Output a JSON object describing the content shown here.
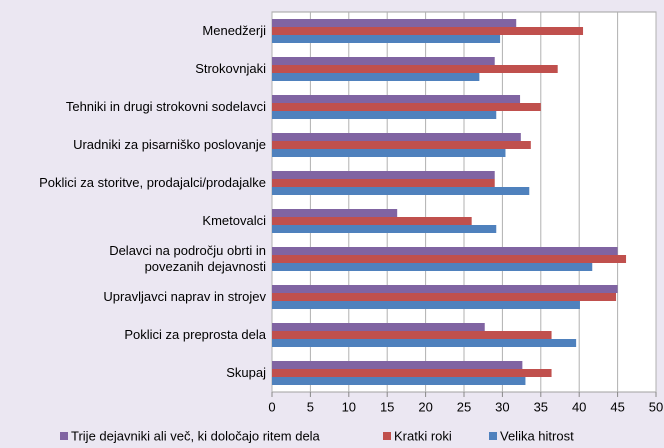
{
  "chart_data": {
    "type": "barh",
    "categories": [
      "Menedžerji",
      "Strokovnjaki",
      "Tehniki in drugi strokovni sodelavci",
      "Uradniki za pisarniško poslovanje",
      "Poklici za storitve, prodajalci/prodajalke",
      "Kmetovalci",
      "Delavci na področju obrti in\npovezanih dejavnosti",
      "Upravljavci naprav in strojev",
      "Poklici za preprosta dela",
      "Skupaj"
    ],
    "series": [
      {
        "name": "Trije dejavniki ali več, ki določajo ritem dela",
        "color": "#8064a2",
        "values": [
          31.8,
          29,
          32.3,
          32.4,
          29,
          16.3,
          45,
          45,
          27.7,
          32.6
        ]
      },
      {
        "name": "Kratki roki",
        "color": "#c0504d",
        "values": [
          40.5,
          37.2,
          35,
          33.7,
          29,
          26,
          46.1,
          44.8,
          36.4,
          36.4
        ]
      },
      {
        "name": "Velika hitrost",
        "color": "#4f81bd",
        "values": [
          29.7,
          27,
          29.2,
          30.4,
          33.5,
          29.2,
          41.7,
          40.1,
          39.6,
          33
        ]
      }
    ],
    "xlim": [
      0,
      50
    ],
    "xticks": [
      0,
      5,
      10,
      15,
      20,
      25,
      30,
      35,
      40,
      45,
      50
    ],
    "grid": true
  }
}
